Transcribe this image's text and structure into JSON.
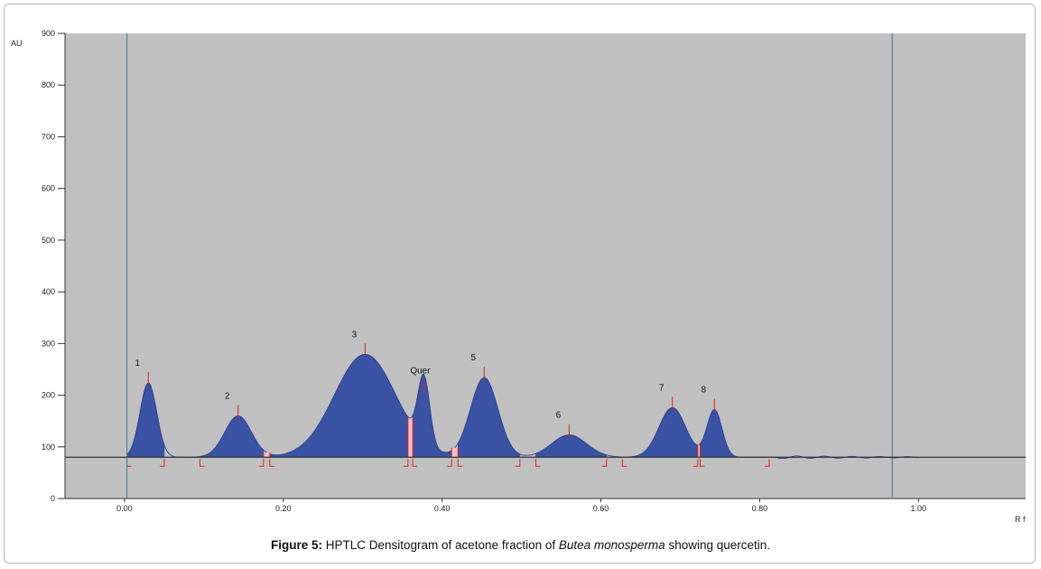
{
  "caption": {
    "label": "Figure 5:",
    "text_before": " HPTLC Densitogram of acetone fraction of ",
    "species": "Butea monosperma",
    "text_after": " showing quercetin."
  },
  "chart_data": {
    "type": "area",
    "xlabel": "R f",
    "ylabel": "AU",
    "xlim": [
      -0.075,
      1.135
    ],
    "ylim": [
      0,
      900
    ],
    "baseline": 80,
    "x_ticks": [
      "0.00",
      "0.20",
      "0.40",
      "0.60",
      "0.80",
      "1.00"
    ],
    "x_tick_values": [
      0.0,
      0.2,
      0.4,
      0.6,
      0.8,
      1.0
    ],
    "y_ticks": [
      0,
      100,
      200,
      300,
      400,
      500,
      600,
      700,
      800,
      900
    ],
    "vertical_markers": [
      0.003,
      0.967
    ],
    "colors": {
      "plot_bg": "#c0c0c0",
      "fill": "#3a53a4",
      "gap": "#f2c0c0",
      "marker": "#e02020",
      "baseline": "#333333",
      "vline": "#4a8a8a"
    },
    "peaks": [
      {
        "label": "1",
        "start": 0.003,
        "max_rf": 0.03,
        "height": 224,
        "end": 0.05
      },
      {
        "label": "2",
        "start": 0.095,
        "max_rf": 0.143,
        "height": 160,
        "end": 0.175
      },
      {
        "label": "3",
        "start": 0.183,
        "max_rf": 0.303,
        "height": 279,
        "end": 0.357
      },
      {
        "label": "Quer",
        "start": 0.363,
        "max_rf": 0.377,
        "height": 209,
        "end": 0.412
      },
      {
        "label": "5",
        "start": 0.42,
        "max_rf": 0.453,
        "height": 234,
        "end": 0.498
      },
      {
        "label": "6",
        "start": 0.518,
        "max_rf": 0.56,
        "height": 123,
        "end": 0.607
      },
      {
        "label": "7",
        "start": 0.627,
        "max_rf": 0.69,
        "height": 176,
        "end": 0.722
      },
      {
        "label": "8",
        "start": 0.725,
        "max_rf": 0.743,
        "height": 172,
        "end": 0.812
      }
    ]
  }
}
